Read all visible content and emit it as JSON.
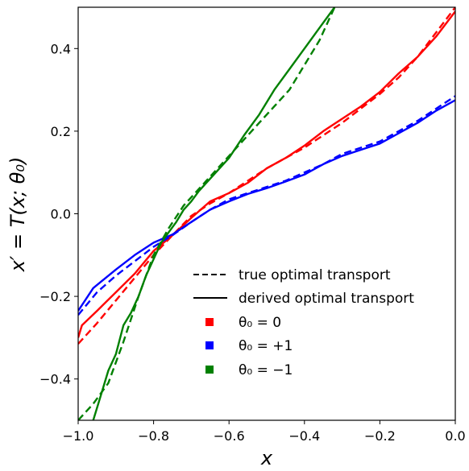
{
  "chart_data": {
    "type": "line",
    "title": "",
    "xlabel": "x",
    "ylabel": "x′ = T(x; θ₀)",
    "xlim": [
      -1.0,
      0.0
    ],
    "ylim": [
      -0.5,
      0.5
    ],
    "xticks": [
      -1.0,
      -0.8,
      -0.6,
      -0.4,
      -0.2,
      0.0
    ],
    "xtick_labels": [
      "−1.0",
      "−0.8",
      "−0.6",
      "−0.4",
      "−0.2",
      "0.0"
    ],
    "yticks": [
      -0.4,
      -0.2,
      0.0,
      0.2,
      0.4
    ],
    "ytick_labels": [
      "−0.4",
      "−0.2",
      "0.0",
      "0.2",
      "0.4"
    ],
    "grid": false,
    "legend_position": "lower-right",
    "legend": {
      "style_entries": [
        {
          "label": "true optimal transport",
          "linestyle": "dashed"
        },
        {
          "label": "derived optimal transport",
          "linestyle": "solid"
        }
      ],
      "color_entries": [
        {
          "label": "θ₀ = 0",
          "color": "#ff0000"
        },
        {
          "label": "θ₀ = +1",
          "color": "#0000ff"
        },
        {
          "label": "θ₀ = −1",
          "color": "#008000"
        }
      ]
    },
    "series": [
      {
        "theta": "0",
        "color": "#ff0000",
        "style": "dashed",
        "x": [
          -1.0,
          -0.95,
          -0.9,
          -0.85,
          -0.8,
          -0.75,
          -0.7,
          -0.65,
          -0.6,
          -0.55,
          -0.5,
          -0.45,
          -0.4,
          -0.35,
          -0.3,
          -0.25,
          -0.2,
          -0.15,
          -0.1,
          -0.05,
          0.0
        ],
        "y": [
          -0.315,
          -0.265,
          -0.21,
          -0.155,
          -0.1,
          -0.052,
          -0.005,
          0.025,
          0.05,
          0.08,
          0.11,
          0.135,
          0.16,
          0.19,
          0.22,
          0.255,
          0.29,
          0.33,
          0.38,
          0.44,
          0.5
        ]
      },
      {
        "theta": "0",
        "color": "#ff0000",
        "style": "solid",
        "x": [
          -1.0,
          -0.99,
          -0.95,
          -0.9,
          -0.85,
          -0.8,
          -0.75,
          -0.7,
          -0.65,
          -0.6,
          -0.55,
          -0.5,
          -0.45,
          -0.4,
          -0.35,
          -0.3,
          -0.25,
          -0.2,
          -0.15,
          -0.1,
          -0.05,
          0.0
        ],
        "y": [
          -0.3,
          -0.27,
          -0.235,
          -0.19,
          -0.145,
          -0.09,
          -0.052,
          -0.01,
          0.03,
          0.05,
          0.075,
          0.11,
          0.135,
          0.165,
          0.2,
          0.23,
          0.26,
          0.295,
          0.34,
          0.38,
          0.43,
          0.49
        ]
      },
      {
        "theta": "+1",
        "color": "#0000ff",
        "style": "dashed",
        "x": [
          -1.0,
          -0.95,
          -0.9,
          -0.85,
          -0.8,
          -0.75,
          -0.7,
          -0.65,
          -0.6,
          -0.55,
          -0.5,
          -0.45,
          -0.4,
          -0.35,
          -0.3,
          -0.25,
          -0.2,
          -0.15,
          -0.1,
          -0.05,
          0.0
        ],
        "y": [
          -0.245,
          -0.19,
          -0.15,
          -0.115,
          -0.08,
          -0.052,
          -0.02,
          0.01,
          0.035,
          0.05,
          0.065,
          0.08,
          0.1,
          0.12,
          0.145,
          0.16,
          0.175,
          0.2,
          0.225,
          0.255,
          0.285
        ]
      },
      {
        "theta": "+1",
        "color": "#0000ff",
        "style": "solid",
        "x": [
          -1.0,
          -0.96,
          -0.9,
          -0.85,
          -0.8,
          -0.75,
          -0.7,
          -0.65,
          -0.6,
          -0.55,
          -0.5,
          -0.45,
          -0.4,
          -0.35,
          -0.3,
          -0.25,
          -0.2,
          -0.15,
          -0.1,
          -0.05,
          0.0
        ],
        "y": [
          -0.235,
          -0.18,
          -0.135,
          -0.1,
          -0.07,
          -0.05,
          -0.02,
          0.01,
          0.03,
          0.048,
          0.062,
          0.078,
          0.095,
          0.12,
          0.14,
          0.155,
          0.17,
          0.195,
          0.22,
          0.25,
          0.275
        ]
      },
      {
        "theta": "−1",
        "color": "#008000",
        "style": "dashed",
        "x": [
          -1.0,
          -0.96,
          -0.92,
          -0.88,
          -0.84,
          -0.8,
          -0.76,
          -0.72,
          -0.68,
          -0.64,
          -0.6,
          -0.56,
          -0.52,
          -0.48,
          -0.44,
          -0.4,
          -0.36,
          -0.32
        ],
        "y": [
          -0.5,
          -0.46,
          -0.41,
          -0.31,
          -0.2,
          -0.1,
          -0.035,
          0.02,
          0.06,
          0.1,
          0.14,
          0.18,
          0.22,
          0.26,
          0.3,
          0.36,
          0.42,
          0.5
        ]
      },
      {
        "theta": "−1",
        "color": "#008000",
        "style": "solid",
        "x": [
          -0.96,
          -0.94,
          -0.92,
          -0.9,
          -0.88,
          -0.86,
          -0.84,
          -0.82,
          -0.8,
          -0.78,
          -0.76,
          -0.74,
          -0.72,
          -0.7,
          -0.68,
          -0.65,
          -0.6,
          -0.56,
          -0.52,
          -0.48,
          -0.44,
          -0.4,
          -0.36,
          -0.32
        ],
        "y": [
          -0.5,
          -0.44,
          -0.38,
          -0.34,
          -0.27,
          -0.24,
          -0.2,
          -0.15,
          -0.11,
          -0.07,
          -0.045,
          -0.02,
          0.01,
          0.03,
          0.055,
          0.085,
          0.135,
          0.19,
          0.24,
          0.3,
          0.35,
          0.4,
          0.45,
          0.5
        ]
      }
    ]
  }
}
